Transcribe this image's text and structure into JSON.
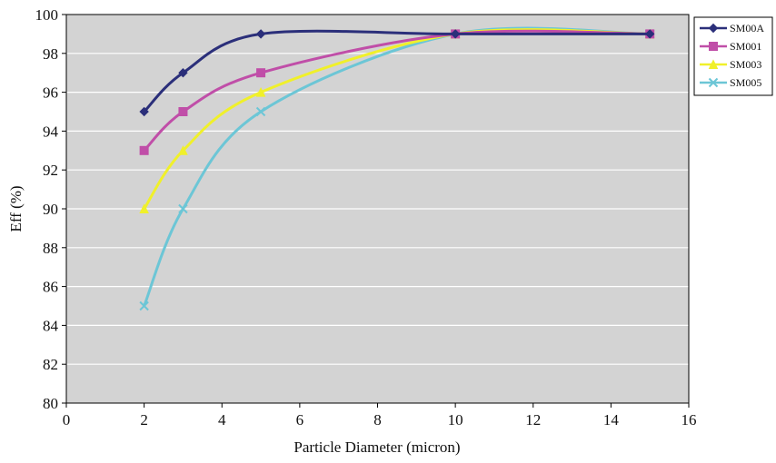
{
  "chart_data": {
    "type": "line",
    "xlabel": "Particle Diameter (micron)",
    "ylabel": "Eff (%)",
    "xlim": [
      0,
      16
    ],
    "ylim": [
      80,
      100
    ],
    "x_ticks": [
      "0",
      "2",
      "4",
      "6",
      "8",
      "10",
      "12",
      "14",
      "16"
    ],
    "y_ticks": [
      "80",
      "82",
      "84",
      "86",
      "88",
      "90",
      "92",
      "94",
      "96",
      "98",
      "100"
    ],
    "grid": "horizontal",
    "plot_background": "#d3d3d3",
    "smoothed": true,
    "legend_position": "top-right",
    "x": [
      2,
      3,
      5,
      10,
      15
    ],
    "series": [
      {
        "name": "SM00A",
        "color": "#2b2f7a",
        "marker": "diamond",
        "values": [
          95,
          97,
          99,
          99,
          99
        ]
      },
      {
        "name": "SM001",
        "color": "#c04ea8",
        "marker": "square",
        "values": [
          93,
          95,
          97,
          99,
          99
        ]
      },
      {
        "name": "SM003",
        "color": "#f0f02a",
        "marker": "triangle",
        "values": [
          90,
          93,
          96,
          99,
          99
        ]
      },
      {
        "name": "SM005",
        "color": "#6cc6d6",
        "marker": "x",
        "values": [
          85,
          90,
          95,
          99,
          99
        ]
      }
    ]
  }
}
